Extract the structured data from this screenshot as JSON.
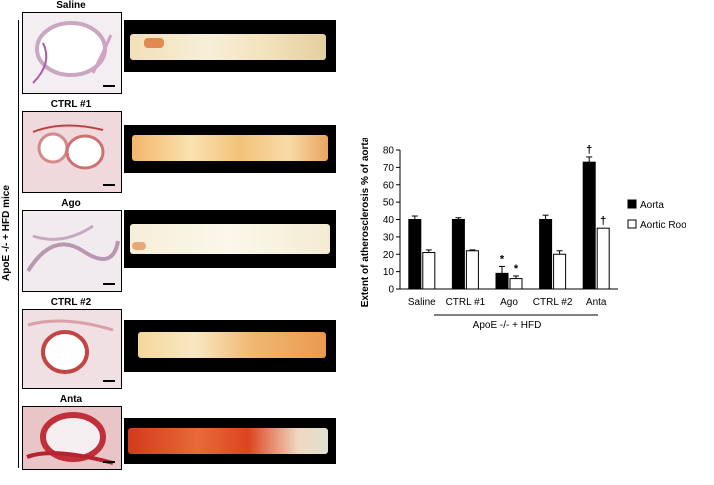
{
  "group_label": "ApoE -/- + HFD mice",
  "panels": [
    {
      "title": "Saline"
    },
    {
      "title": "CTRL #1"
    },
    {
      "title": "Ago"
    },
    {
      "title": "CTRL #2"
    },
    {
      "title": "Anta"
    }
  ],
  "chart_data": {
    "type": "bar",
    "ylabel": "Extent of atherosclerosis % of aorta",
    "ylim": [
      0,
      80
    ],
    "yticks": [
      0,
      10,
      20,
      30,
      40,
      50,
      60,
      70,
      80
    ],
    "categories": [
      "Saline",
      "CTRL #1",
      "Ago",
      "CTRL #2",
      "Anta"
    ],
    "group_label": "ApoE -/- + HFD",
    "series": [
      {
        "name": "Aorta",
        "color": "#000000",
        "values": [
          40,
          40,
          9,
          40,
          73
        ],
        "errors": [
          2,
          1,
          4,
          2.5,
          3
        ]
      },
      {
        "name": "Aortic Root",
        "color": "#ffffff",
        "values": [
          21,
          22,
          6,
          20,
          35
        ],
        "errors": [
          1.5,
          0.5,
          1.5,
          2,
          0
        ]
      }
    ],
    "annotations": [
      {
        "category": "Ago",
        "series": "Aorta",
        "text": "*"
      },
      {
        "category": "Ago",
        "series": "Aortic Root",
        "text": "*"
      },
      {
        "category": "Anta",
        "series": "Aorta",
        "text": "†"
      },
      {
        "category": "Anta",
        "series": "Aortic Root",
        "text": "†"
      }
    ],
    "legend_position": "right"
  }
}
